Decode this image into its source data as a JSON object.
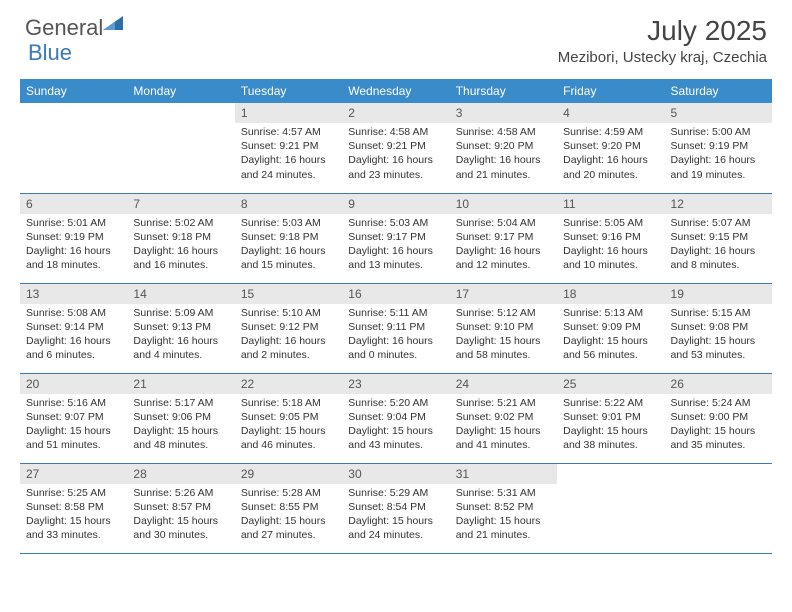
{
  "logo": {
    "general": "General",
    "blue": "Blue"
  },
  "title": "July 2025",
  "location": "Mezibori, Ustecky kraj, Czechia",
  "colors": {
    "header_bg": "#3a8bc9",
    "border": "#3a7ab8",
    "daynum_bg": "#e8e8e8",
    "text": "#333333"
  },
  "weekdays": [
    "Sunday",
    "Monday",
    "Tuesday",
    "Wednesday",
    "Thursday",
    "Friday",
    "Saturday"
  ],
  "weeks": [
    [
      null,
      null,
      {
        "n": "1",
        "sr": "4:57 AM",
        "ss": "9:21 PM",
        "dl": "16 hours and 24 minutes."
      },
      {
        "n": "2",
        "sr": "4:58 AM",
        "ss": "9:21 PM",
        "dl": "16 hours and 23 minutes."
      },
      {
        "n": "3",
        "sr": "4:58 AM",
        "ss": "9:20 PM",
        "dl": "16 hours and 21 minutes."
      },
      {
        "n": "4",
        "sr": "4:59 AM",
        "ss": "9:20 PM",
        "dl": "16 hours and 20 minutes."
      },
      {
        "n": "5",
        "sr": "5:00 AM",
        "ss": "9:19 PM",
        "dl": "16 hours and 19 minutes."
      }
    ],
    [
      {
        "n": "6",
        "sr": "5:01 AM",
        "ss": "9:19 PM",
        "dl": "16 hours and 18 minutes."
      },
      {
        "n": "7",
        "sr": "5:02 AM",
        "ss": "9:18 PM",
        "dl": "16 hours and 16 minutes."
      },
      {
        "n": "8",
        "sr": "5:03 AM",
        "ss": "9:18 PM",
        "dl": "16 hours and 15 minutes."
      },
      {
        "n": "9",
        "sr": "5:03 AM",
        "ss": "9:17 PM",
        "dl": "16 hours and 13 minutes."
      },
      {
        "n": "10",
        "sr": "5:04 AM",
        "ss": "9:17 PM",
        "dl": "16 hours and 12 minutes."
      },
      {
        "n": "11",
        "sr": "5:05 AM",
        "ss": "9:16 PM",
        "dl": "16 hours and 10 minutes."
      },
      {
        "n": "12",
        "sr": "5:07 AM",
        "ss": "9:15 PM",
        "dl": "16 hours and 8 minutes."
      }
    ],
    [
      {
        "n": "13",
        "sr": "5:08 AM",
        "ss": "9:14 PM",
        "dl": "16 hours and 6 minutes."
      },
      {
        "n": "14",
        "sr": "5:09 AM",
        "ss": "9:13 PM",
        "dl": "16 hours and 4 minutes."
      },
      {
        "n": "15",
        "sr": "5:10 AM",
        "ss": "9:12 PM",
        "dl": "16 hours and 2 minutes."
      },
      {
        "n": "16",
        "sr": "5:11 AM",
        "ss": "9:11 PM",
        "dl": "16 hours and 0 minutes."
      },
      {
        "n": "17",
        "sr": "5:12 AM",
        "ss": "9:10 PM",
        "dl": "15 hours and 58 minutes."
      },
      {
        "n": "18",
        "sr": "5:13 AM",
        "ss": "9:09 PM",
        "dl": "15 hours and 56 minutes."
      },
      {
        "n": "19",
        "sr": "5:15 AM",
        "ss": "9:08 PM",
        "dl": "15 hours and 53 minutes."
      }
    ],
    [
      {
        "n": "20",
        "sr": "5:16 AM",
        "ss": "9:07 PM",
        "dl": "15 hours and 51 minutes."
      },
      {
        "n": "21",
        "sr": "5:17 AM",
        "ss": "9:06 PM",
        "dl": "15 hours and 48 minutes."
      },
      {
        "n": "22",
        "sr": "5:18 AM",
        "ss": "9:05 PM",
        "dl": "15 hours and 46 minutes."
      },
      {
        "n": "23",
        "sr": "5:20 AM",
        "ss": "9:04 PM",
        "dl": "15 hours and 43 minutes."
      },
      {
        "n": "24",
        "sr": "5:21 AM",
        "ss": "9:02 PM",
        "dl": "15 hours and 41 minutes."
      },
      {
        "n": "25",
        "sr": "5:22 AM",
        "ss": "9:01 PM",
        "dl": "15 hours and 38 minutes."
      },
      {
        "n": "26",
        "sr": "5:24 AM",
        "ss": "9:00 PM",
        "dl": "15 hours and 35 minutes."
      }
    ],
    [
      {
        "n": "27",
        "sr": "5:25 AM",
        "ss": "8:58 PM",
        "dl": "15 hours and 33 minutes."
      },
      {
        "n": "28",
        "sr": "5:26 AM",
        "ss": "8:57 PM",
        "dl": "15 hours and 30 minutes."
      },
      {
        "n": "29",
        "sr": "5:28 AM",
        "ss": "8:55 PM",
        "dl": "15 hours and 27 minutes."
      },
      {
        "n": "30",
        "sr": "5:29 AM",
        "ss": "8:54 PM",
        "dl": "15 hours and 24 minutes."
      },
      {
        "n": "31",
        "sr": "5:31 AM",
        "ss": "8:52 PM",
        "dl": "15 hours and 21 minutes."
      },
      null,
      null
    ]
  ],
  "labels": {
    "sunrise": "Sunrise: ",
    "sunset": "Sunset: ",
    "daylight": "Daylight: "
  }
}
